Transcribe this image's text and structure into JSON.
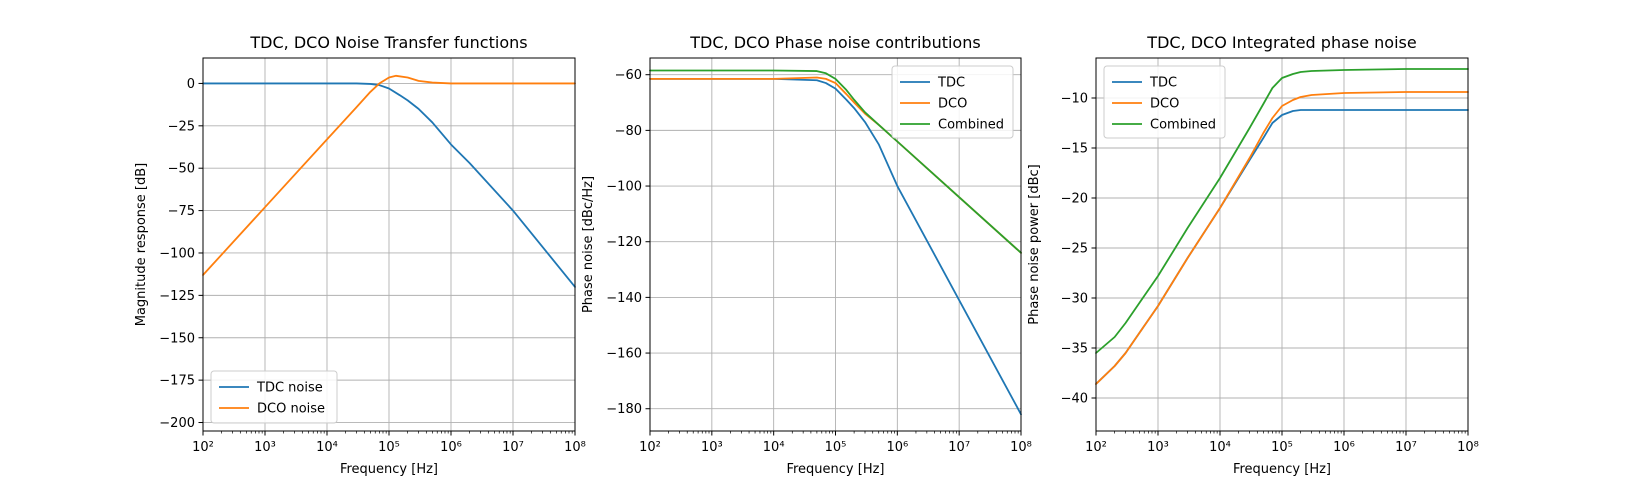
{
  "colors": {
    "blue": "#1f77b4",
    "orange": "#ff7f0e",
    "green": "#2ca02c",
    "grid": "#b0b0b0"
  },
  "chart_data": [
    {
      "type": "line",
      "title": "TDC, DCO Noise Transfer functions",
      "xlabel": "Frequency [Hz]",
      "ylabel": "Magnitude response [dB]",
      "xscale": "log",
      "xlim": [
        100,
        100000000
      ],
      "ylim": [
        -205,
        15
      ],
      "xticks": [
        100,
        1000,
        10000,
        100000,
        1000000,
        10000000,
        100000000
      ],
      "xtick_labels": [
        "10²",
        "10³",
        "10⁴",
        "10⁵",
        "10⁶",
        "10⁷",
        "10⁸"
      ],
      "yticks": [
        0,
        -25,
        -50,
        -75,
        -100,
        -125,
        -150,
        -175,
        -200
      ],
      "ytick_labels": [
        "0",
        "−25",
        "−50",
        "−75",
        "−100",
        "−125",
        "−150",
        "−175",
        "−200"
      ],
      "grid": true,
      "legend": "lower-left",
      "series": [
        {
          "name": "TDC noise",
          "color": "#1f77b4",
          "x": [
            100,
            1000,
            10000,
            30000,
            50000,
            70000,
            100000,
            150000,
            200000,
            300000,
            500000,
            1000000,
            2000000,
            10000000,
            100000000
          ],
          "y": [
            0,
            0,
            0,
            0,
            -0.3,
            -1,
            -3,
            -7,
            -10,
            -15,
            -23,
            -36,
            -47,
            -75,
            -120
          ]
        },
        {
          "name": "DCO noise",
          "color": "#ff7f0e",
          "x": [
            100,
            1000,
            10000,
            30000,
            50000,
            70000,
            100000,
            130000,
            200000,
            300000,
            500000,
            1000000,
            10000000,
            100000000
          ],
          "y": [
            -113,
            -73,
            -33,
            -14,
            -5,
            0,
            3.5,
            4.5,
            3.5,
            1.5,
            0.5,
            0,
            0,
            0
          ]
        }
      ]
    },
    {
      "type": "line",
      "title": "TDC, DCO Phase noise contributions",
      "xlabel": "Frequency [Hz]",
      "ylabel": "Phase noise [dBc/Hz]",
      "xscale": "log",
      "xlim": [
        100,
        100000000
      ],
      "ylim": [
        -188,
        -54
      ],
      "xticks": [
        100,
        1000,
        10000,
        100000,
        1000000,
        10000000,
        100000000
      ],
      "xtick_labels": [
        "10²",
        "10³",
        "10⁴",
        "10⁵",
        "10⁶",
        "10⁷",
        "10⁸"
      ],
      "yticks": [
        -60,
        -80,
        -100,
        -120,
        -140,
        -160,
        -180
      ],
      "ytick_labels": [
        "−60",
        "−80",
        "−100",
        "−120",
        "−140",
        "−160",
        "−180"
      ],
      "grid": true,
      "legend": "upper-right",
      "series": [
        {
          "name": "TDC",
          "color": "#1f77b4",
          "x": [
            100,
            1000,
            10000,
            50000,
            70000,
            100000,
            150000,
            200000,
            300000,
            500000,
            1000000,
            10000000,
            100000000
          ],
          "y": [
            -61.5,
            -61.5,
            -61.5,
            -62,
            -63,
            -65,
            -69,
            -72,
            -77,
            -85,
            -100,
            -141,
            -182
          ]
        },
        {
          "name": "DCO",
          "color": "#ff7f0e",
          "x": [
            100,
            1000,
            10000,
            50000,
            70000,
            100000,
            150000,
            200000,
            300000,
            500000,
            1000000,
            10000000,
            100000000
          ],
          "y": [
            -61.5,
            -61.5,
            -61.5,
            -61,
            -61.5,
            -63,
            -67,
            -70,
            -74,
            -78,
            -84,
            -104,
            -124
          ]
        },
        {
          "name": "Combined",
          "color": "#2ca02c",
          "x": [
            100,
            1000,
            10000,
            50000,
            70000,
            100000,
            150000,
            200000,
            300000,
            500000,
            1000000,
            10000000,
            100000000
          ],
          "y": [
            -58.5,
            -58.5,
            -58.5,
            -58.7,
            -59.5,
            -61.5,
            -65.5,
            -69,
            -73.5,
            -78,
            -84,
            -104,
            -124
          ]
        }
      ]
    },
    {
      "type": "line",
      "title": "TDC, DCO Integrated phase noise",
      "xlabel": "Frequency [Hz]",
      "ylabel": "Phase noise power [dBc]",
      "xscale": "log",
      "xlim": [
        100,
        100000000
      ],
      "ylim": [
        -43.3,
        -6
      ],
      "xticks": [
        100,
        1000,
        10000,
        100000,
        1000000,
        10000000,
        100000000
      ],
      "xtick_labels": [
        "10²",
        "10³",
        "10⁴",
        "10⁵",
        "10⁶",
        "10⁷",
        "10⁸"
      ],
      "yticks": [
        -10,
        -15,
        -20,
        -25,
        -30,
        -35,
        -40
      ],
      "ytick_labels": [
        "−10",
        "−15",
        "−20",
        "−25",
        "−30",
        "−35",
        "−40"
      ],
      "grid": true,
      "legend": "upper-left",
      "series": [
        {
          "name": "TDC",
          "color": "#1f77b4",
          "x": [
            100,
            200,
            300,
            500,
            1000,
            3000,
            10000,
            30000,
            50000,
            70000,
            100000,
            150000,
            200000,
            300000,
            1000000,
            100000000
          ],
          "y": [
            -38.6,
            -36.8,
            -35.5,
            -33.5,
            -30.8,
            -26,
            -21,
            -16.2,
            -14,
            -12.5,
            -11.7,
            -11.3,
            -11.2,
            -11.2,
            -11.2,
            -11.2
          ]
        },
        {
          "name": "DCO",
          "color": "#ff7f0e",
          "x": [
            100,
            200,
            300,
            500,
            1000,
            3000,
            10000,
            30000,
            50000,
            70000,
            100000,
            150000,
            200000,
            300000,
            1000000,
            10000000,
            100000000
          ],
          "y": [
            -38.6,
            -36.8,
            -35.5,
            -33.5,
            -30.8,
            -26,
            -21,
            -16,
            -13.5,
            -12,
            -10.8,
            -10.2,
            -9.9,
            -9.7,
            -9.5,
            -9.4,
            -9.4
          ]
        },
        {
          "name": "Combined",
          "color": "#2ca02c",
          "x": [
            100,
            200,
            300,
            500,
            1000,
            3000,
            10000,
            30000,
            50000,
            70000,
            100000,
            150000,
            200000,
            300000,
            1000000,
            10000000,
            100000000
          ],
          "y": [
            -35.5,
            -33.9,
            -32.5,
            -30.5,
            -27.8,
            -23,
            -18,
            -13,
            -10.6,
            -9,
            -8,
            -7.6,
            -7.4,
            -7.3,
            -7.2,
            -7.1,
            -7.1
          ]
        }
      ]
    }
  ]
}
